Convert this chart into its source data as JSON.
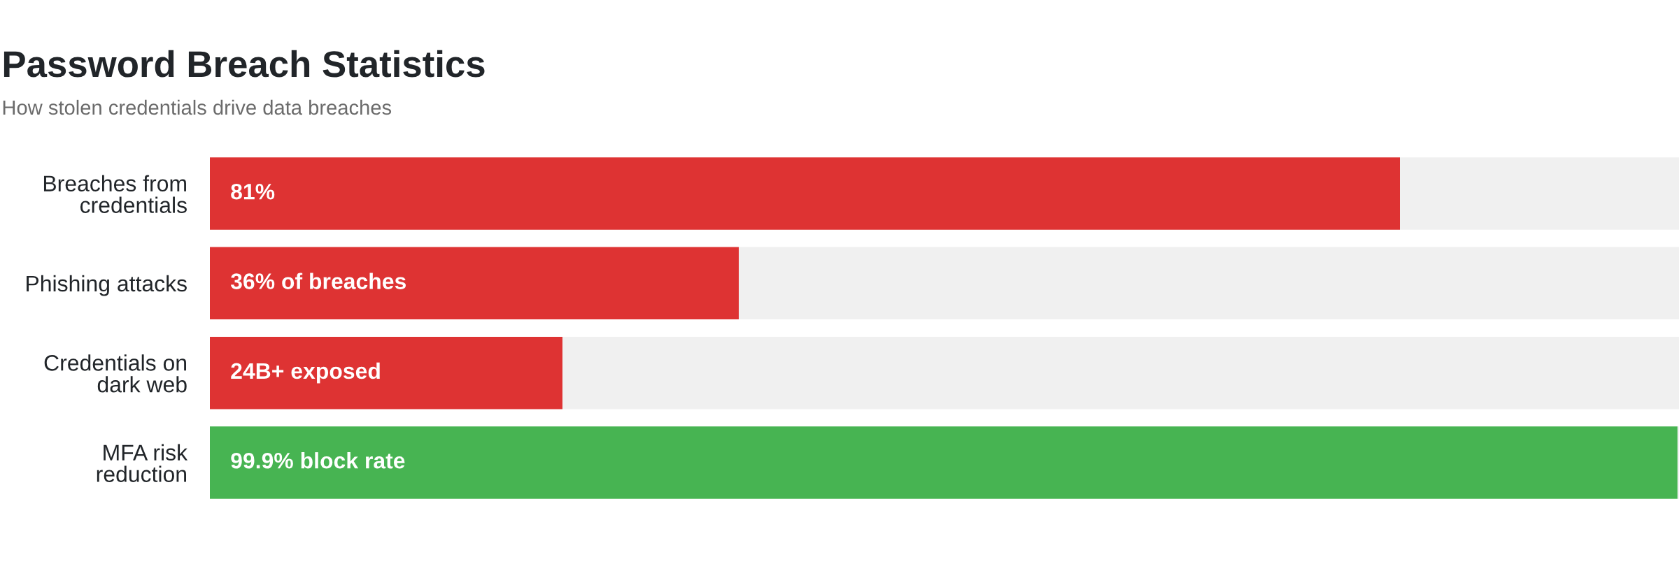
{
  "chart_data": {
    "type": "bar",
    "orientation": "horizontal",
    "stacked": true,
    "title": "Password Breach Statistics",
    "subtitle": "How stolen credentials drive data breaches",
    "categories": [
      "Breaches from credentials",
      "Phishing attacks",
      "Credentials on dark web",
      "MFA risk reduction"
    ],
    "series": [
      {
        "colors": [
          "#de3333",
          "#de3333",
          "#de3333",
          "#47b452"
        ],
        "values": [
          81,
          36,
          24,
          99.9
        ],
        "value_labels": [
          "81%",
          "36% of breaches",
          "24B+ exposed",
          "99.9% block rate"
        ]
      },
      {
        "color": "#f0f0f0",
        "values": [
          19,
          64,
          76,
          0.1
        ]
      }
    ],
    "xlim": [
      0,
      100
    ],
    "tick_labels": "y"
  }
}
